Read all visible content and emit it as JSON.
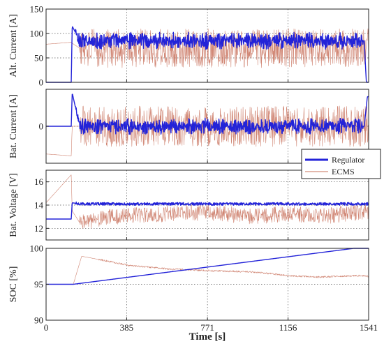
{
  "figure": {
    "xlabel": "Time [s]",
    "x_ticks": [
      "0",
      "385",
      "771",
      "1156",
      "1541"
    ]
  },
  "legend": {
    "items": [
      "Regulator",
      "ECMS"
    ]
  },
  "colors": {
    "regulator": "#2323d8",
    "ecms": "#c8705a",
    "grid": "#555555",
    "axis": "#222222"
  },
  "chart_data": [
    {
      "type": "line",
      "ylabel": "Alt. Current [A]",
      "xlim": [
        0,
        1541
      ],
      "ylim": [
        0,
        150
      ],
      "y_ticks": [
        "0",
        "50",
        "100",
        "150"
      ],
      "grid": true,
      "series": [
        {
          "name": "Regulator",
          "x": [
            0,
            120,
            125,
            160,
            200,
            400,
            500,
            700,
            800,
            1000,
            1100,
            1300,
            1400,
            1500,
            1520,
            1530
          ],
          "y": [
            0,
            0,
            115,
            85,
            85,
            85,
            85,
            85,
            85,
            85,
            85,
            85,
            85,
            85,
            85,
            0
          ]
        },
        {
          "name": "ECMS",
          "x": [
            0,
            120,
            125,
            160,
            400,
            771,
            1156,
            1541
          ],
          "y": [
            78,
            82,
            80,
            70,
            70,
            70,
            70,
            70
          ]
        }
      ]
    },
    {
      "type": "line",
      "ylabel": "Bat. Current [A]",
      "xlim": [
        0,
        1541
      ],
      "ylim": [
        -100,
        100
      ],
      "y_ticks": [
        "0"
      ],
      "grid": true,
      "series": [
        {
          "name": "Regulator",
          "x": [
            0,
            120,
            125,
            160,
            400,
            771,
            1156,
            1520,
            1535
          ],
          "y": [
            0,
            0,
            90,
            0,
            0,
            0,
            0,
            0,
            80
          ]
        },
        {
          "name": "ECMS",
          "x": [
            0,
            120,
            125,
            160,
            400,
            771,
            1156,
            1541
          ],
          "y": [
            -75,
            -80,
            0,
            0,
            0,
            0,
            0,
            0
          ]
        }
      ]
    },
    {
      "type": "line",
      "ylabel": "Bat. Voltage [V]",
      "xlim": [
        0,
        1541
      ],
      "ylim": [
        11,
        17
      ],
      "y_ticks": [
        "12",
        "14",
        "16"
      ],
      "grid": true,
      "series": [
        {
          "name": "Regulator",
          "x": [
            0,
            120,
            125,
            160,
            400,
            771,
            1156,
            1520,
            1541
          ],
          "y": [
            12.8,
            12.8,
            14.2,
            14.1,
            14.1,
            14.1,
            14.1,
            14.1,
            14.1
          ]
        },
        {
          "name": "ECMS",
          "x": [
            0,
            120,
            125,
            160,
            300,
            500,
            771,
            1000,
            1156,
            1300,
            1541
          ],
          "y": [
            14.2,
            16.6,
            13.5,
            12.5,
            13.0,
            13.2,
            13.4,
            13.0,
            13.3,
            13.0,
            13.5
          ]
        }
      ]
    },
    {
      "type": "line",
      "ylabel": "SOC [%]",
      "xlim": [
        0,
        1541
      ],
      "ylim": [
        90,
        100
      ],
      "y_ticks": [
        "90",
        "95",
        "100"
      ],
      "grid": true,
      "series": [
        {
          "name": "Regulator",
          "x": [
            0,
            130,
            1470,
            1541
          ],
          "y": [
            95,
            95,
            100,
            100
          ]
        },
        {
          "name": "ECMS",
          "x": [
            0,
            130,
            170,
            280,
            400,
            600,
            771,
            1000,
            1156,
            1300,
            1400,
            1500,
            1541
          ],
          "y": [
            95,
            95,
            98.9,
            98.3,
            97.6,
            97.1,
            96.9,
            96.7,
            96.2,
            96.0,
            96.1,
            96.2,
            96.1
          ]
        }
      ]
    }
  ]
}
